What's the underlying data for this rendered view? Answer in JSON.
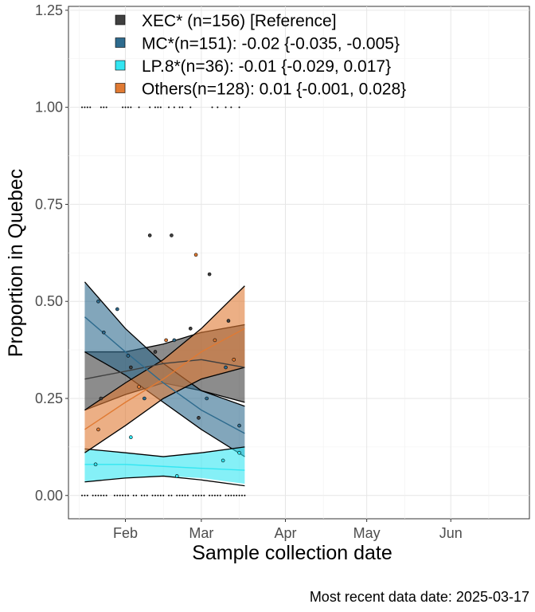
{
  "chart_data": {
    "type": "line",
    "xlabel": "Sample collection date",
    "ylabel": "Proportion in Quebec",
    "caption": "Most recent data date: 2025-03-17",
    "x_ticks": [
      "Feb",
      "Mar",
      "Apr",
      "May",
      "Jun"
    ],
    "y_ticks": [
      "0.00",
      "0.25",
      "0.50",
      "0.75",
      "1.00",
      "1.25"
    ],
    "xlim": [
      "2025-01-11",
      "2025-06-30"
    ],
    "ylim": [
      -0.06,
      1.26
    ],
    "grid": true,
    "legend_position": "top-left",
    "legend": [
      {
        "label": "XEC* (n=156)  [Reference]",
        "color": "#404040"
      },
      {
        "label": "MC*(n=151): -0.02 {-0.035, -0.005}",
        "color": "#2e6b8e"
      },
      {
        "label": "LP.8*(n=36): -0.01 {-0.029, 0.017}",
        "color": "#33e6f2"
      },
      {
        "label": "Others(n=128): 0.01 {-0.001, 0.028}",
        "color": "#e07a33"
      }
    ],
    "x": [
      "2025-01-17",
      "2025-02-01",
      "2025-02-15",
      "2025-03-01",
      "2025-03-17"
    ],
    "series": [
      {
        "name": "XEC*",
        "color": "#404040",
        "fill": "#404040",
        "mean": [
          0.3,
          0.32,
          0.34,
          0.35,
          0.33
        ],
        "lower": [
          0.22,
          0.26,
          0.29,
          0.27,
          0.24
        ],
        "upper": [
          0.37,
          0.37,
          0.39,
          0.42,
          0.44
        ]
      },
      {
        "name": "MC*",
        "color": "#2e6b8e",
        "fill": "#2e6b8e",
        "mean": [
          0.46,
          0.37,
          0.29,
          0.22,
          0.16
        ],
        "lower": [
          0.37,
          0.31,
          0.24,
          0.17,
          0.1
        ],
        "upper": [
          0.55,
          0.43,
          0.34,
          0.27,
          0.23
        ]
      },
      {
        "name": "LP.8*",
        "color": "#33e6f2",
        "fill": "#33e6f2",
        "mean": [
          0.08,
          0.08,
          0.075,
          0.07,
          0.065
        ],
        "lower": [
          0.035,
          0.045,
          0.05,
          0.045,
          0.03
        ],
        "upper": [
          0.12,
          0.11,
          0.1,
          0.11,
          0.125
        ],
        "edge_lower": [
          0.035,
          0.045,
          0.05,
          0.04,
          0.025
        ]
      },
      {
        "name": "Others",
        "color": "#e07a33",
        "fill": "#e07a33",
        "mean": [
          0.17,
          0.24,
          0.3,
          0.37,
          0.43
        ],
        "lower": [
          0.11,
          0.18,
          0.25,
          0.3,
          0.33
        ],
        "upper": [
          0.22,
          0.29,
          0.35,
          0.43,
          0.54
        ]
      }
    ],
    "points": [
      {
        "x": "2025-01-22",
        "y": 0.5,
        "s": "MC*"
      },
      {
        "x": "2025-01-24",
        "y": 0.42,
        "s": "MC*"
      },
      {
        "x": "2025-01-29",
        "y": 0.48,
        "s": "MC*"
      },
      {
        "x": "2025-02-02",
        "y": 0.36,
        "s": "MC*"
      },
      {
        "x": "2025-02-08",
        "y": 0.25,
        "s": "MC*"
      },
      {
        "x": "2025-02-19",
        "y": 0.4,
        "s": "MC*"
      },
      {
        "x": "2025-03-03",
        "y": 0.25,
        "s": "MC*"
      },
      {
        "x": "2025-03-10",
        "y": 0.33,
        "s": "MC*"
      },
      {
        "x": "2025-03-15",
        "y": 0.18,
        "s": "MC*"
      },
      {
        "x": "2025-01-23",
        "y": 0.25,
        "s": "XEC*"
      },
      {
        "x": "2025-02-03",
        "y": 0.33,
        "s": "XEC*"
      },
      {
        "x": "2025-02-12",
        "y": 0.37,
        "s": "XEC*"
      },
      {
        "x": "2025-02-18",
        "y": 0.67,
        "s": "XEC*"
      },
      {
        "x": "2025-02-25",
        "y": 0.43,
        "s": "XEC*"
      },
      {
        "x": "2025-03-04",
        "y": 0.57,
        "s": "XEC*"
      },
      {
        "x": "2025-03-11",
        "y": 0.45,
        "s": "XEC*"
      },
      {
        "x": "2025-01-22",
        "y": 0.17,
        "s": "Others"
      },
      {
        "x": "2025-02-06",
        "y": 0.28,
        "s": "Others"
      },
      {
        "x": "2025-02-16",
        "y": 0.4,
        "s": "Others"
      },
      {
        "x": "2025-02-27",
        "y": 0.62,
        "s": "Others"
      },
      {
        "x": "2025-03-06",
        "y": 0.4,
        "s": "Others"
      },
      {
        "x": "2025-03-13",
        "y": 0.35,
        "s": "Others"
      },
      {
        "x": "2025-01-21",
        "y": 0.08,
        "s": "LP.8*"
      },
      {
        "x": "2025-02-03",
        "y": 0.15,
        "s": "LP.8*"
      },
      {
        "x": "2025-02-20",
        "y": 0.05,
        "s": "LP.8*"
      },
      {
        "x": "2025-03-09",
        "y": 0.09,
        "s": "LP.8*"
      },
      {
        "x": "2025-03-15",
        "y": 0.11,
        "s": "LP.8*"
      },
      {
        "x": "2025-02-10",
        "y": 0.67,
        "s": "XEC*"
      },
      {
        "x": "2025-02-28",
        "y": 0.2,
        "s": "XEC*"
      }
    ],
    "rug_top_dates": [
      "2025-01-16",
      "2025-01-17",
      "2025-01-18",
      "2025-01-19",
      "2025-01-23",
      "2025-01-24",
      "2025-01-25",
      "2025-01-31",
      "2025-02-01",
      "2025-02-02",
      "2025-02-03",
      "2025-02-06",
      "2025-02-10",
      "2025-02-12",
      "2025-02-13",
      "2025-02-14",
      "2025-02-17",
      "2025-02-19",
      "2025-02-21",
      "2025-02-22",
      "2025-02-25",
      "2025-03-05",
      "2025-03-07",
      "2025-03-10",
      "2025-03-12",
      "2025-03-15"
    ],
    "rug_bottom_dates": [
      "2025-01-16",
      "2025-01-17",
      "2025-01-18",
      "2025-01-20",
      "2025-01-21",
      "2025-01-22",
      "2025-01-23",
      "2025-01-24",
      "2025-01-25",
      "2025-01-28",
      "2025-01-29",
      "2025-01-30",
      "2025-01-31",
      "2025-02-01",
      "2025-02-02",
      "2025-02-04",
      "2025-02-05",
      "2025-02-07",
      "2025-02-08",
      "2025-02-09",
      "2025-02-11",
      "2025-02-12",
      "2025-02-13",
      "2025-02-14",
      "2025-02-15",
      "2025-02-17",
      "2025-02-18",
      "2025-02-20",
      "2025-02-21",
      "2025-02-22",
      "2025-02-23",
      "2025-02-24",
      "2025-02-26",
      "2025-02-27",
      "2025-02-28",
      "2025-03-01",
      "2025-03-02",
      "2025-03-04",
      "2025-03-05",
      "2025-03-06",
      "2025-03-07",
      "2025-03-08",
      "2025-03-10",
      "2025-03-11",
      "2025-03-12",
      "2025-03-13",
      "2025-03-14",
      "2025-03-15",
      "2025-03-16",
      "2025-03-17"
    ]
  }
}
